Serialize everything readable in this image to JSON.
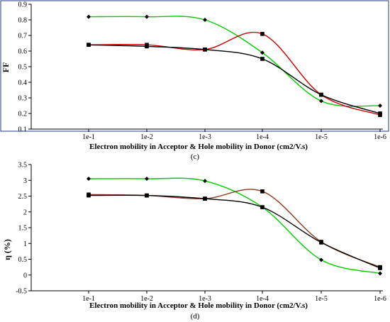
{
  "chart_data": [
    {
      "type": "line",
      "caption": "(c)",
      "ylabel": "FF",
      "xlabel": "Electron mobility in Acceptor & Hole mobility in Donor (cm2/V.s)",
      "categories": [
        "1e-1",
        "1e-2",
        "1e-3",
        "1e-4",
        "1e-5",
        "1e-6"
      ],
      "ylim": [
        0.1,
        0.9
      ],
      "yticks": [
        "0.1",
        "0.2",
        "0.3",
        "0.4",
        "0.5",
        "0.6",
        "0.7",
        "0.8",
        "0.9"
      ],
      "grid": false,
      "series": [
        {
          "color": "#00cc00",
          "marker": "diamond",
          "values": [
            0.82,
            0.82,
            0.8,
            0.59,
            0.28,
            0.25
          ]
        },
        {
          "color": "#cc0000",
          "marker": "square",
          "values": [
            0.64,
            0.64,
            0.61,
            0.71,
            0.32,
            0.19
          ]
        },
        {
          "color": "#000000",
          "marker": "square",
          "values": [
            0.64,
            0.63,
            0.61,
            0.55,
            0.32,
            0.2
          ]
        }
      ]
    },
    {
      "type": "line",
      "caption": "(d)",
      "ylabel": "η (%)",
      "xlabel": "Electron mobility in Acceptor & Hole mobility in Donor (cm2/V.s)",
      "categories": [
        "1e-1",
        "1e-2",
        "1e-3",
        "1e-4",
        "1e-5",
        "1e-6"
      ],
      "ylim": [
        -0.5,
        3.5
      ],
      "yticks": [
        "-0.5",
        "0",
        "0.5",
        "1",
        "1.5",
        "2",
        "2.5",
        "3",
        "3.5"
      ],
      "grid": false,
      "series": [
        {
          "color": "#00cc00",
          "marker": "diamond",
          "values": [
            3.05,
            3.05,
            2.98,
            2.15,
            0.48,
            0.05
          ]
        },
        {
          "color": "#8b3a1a",
          "marker": "square",
          "values": [
            2.55,
            2.52,
            2.42,
            2.65,
            1.05,
            0.25
          ]
        },
        {
          "color": "#000000",
          "marker": "square",
          "values": [
            2.52,
            2.52,
            2.42,
            2.15,
            1.03,
            0.22
          ]
        }
      ]
    }
  ]
}
